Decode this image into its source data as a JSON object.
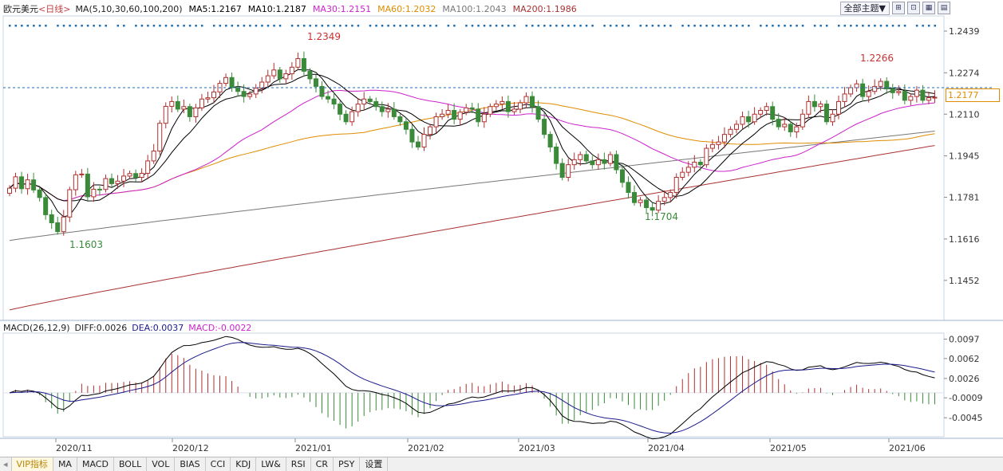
{
  "header": {
    "symbol": "欧元美元",
    "period": "<日线>",
    "ma_label": "MA(5,10,30,60,100,200)",
    "ma5": "MA5:1.2167",
    "ma10": "MA10:1.2187",
    "ma30": "MA30:1.2151",
    "ma60": "MA60:1.2032",
    "ma100": "MA100:1.2043",
    "ma200": "MA200:1.1986"
  },
  "toolbar": {
    "theme": "全部主题▼",
    "icons": [
      "pin-icon",
      "zoom-icon",
      "grid-icon",
      "layout-icon"
    ]
  },
  "price_axis": [
    "1.2439",
    "1.2274",
    "1.2110",
    "1.1945",
    "1.1781",
    "1.1616",
    "1.1452"
  ],
  "current_price": "1.2177",
  "annotations": {
    "high1": "1.2349",
    "high2": "1.2266",
    "low1": "1.1603",
    "low2": "1.1704"
  },
  "macd": {
    "label": "MACD(26,12,9)",
    "diff": "DIFF:0.0026",
    "dea": "DEA:0.0037",
    "macd": "MACD:-0.0022",
    "axis": [
      "0.0097",
      "0.0062",
      "0.0026",
      "-0.0009",
      "-0.0045"
    ]
  },
  "time_axis": [
    "2020/11",
    "2020/12",
    "2021/01",
    "2021/02",
    "2021/03",
    "2021/04",
    "2021/05",
    "2021/06"
  ],
  "tabs": [
    "VIP指标",
    "MA",
    "MACD",
    "BOLL",
    "VOL",
    "BIAS",
    "CCI",
    "KDJ",
    "LW&",
    "RSI",
    "CR",
    "PSY",
    "设置"
  ],
  "colors": {
    "up": "#b03030",
    "down": "#3a8a3a",
    "ma5": "#000000",
    "ma10": "#000000",
    "ma30": "#cc22cc",
    "ma60": "#e08c00",
    "ma100": "#777777",
    "ma200": "#a83232",
    "dea": "#1a1a8c",
    "grid": "#c8d4e4",
    "dashed": "#1e6eb4"
  },
  "chart_data": {
    "type": "candlestick",
    "title": "欧元美元 日线",
    "y_range": [
      1.13,
      1.248
    ],
    "x_range": [
      "2020-10-21",
      "2021-06-09"
    ],
    "closes": [
      1.1817,
      1.1862,
      1.1815,
      1.185,
      1.181,
      1.178,
      1.1712,
      1.168,
      1.1645,
      1.1703,
      1.1811,
      1.187,
      1.1873,
      1.1783,
      1.1813,
      1.1812,
      1.1855,
      1.1835,
      1.1845,
      1.1865,
      1.1875,
      1.186,
      1.1876,
      1.1925,
      1.1964,
      1.2074,
      1.2141,
      1.216,
      1.213,
      1.214,
      1.21,
      1.2135,
      1.217,
      1.2175,
      1.2198,
      1.2232,
      1.2255,
      1.2215,
      1.22,
      1.218,
      1.219,
      1.2213,
      1.2237,
      1.2262,
      1.2285,
      1.225,
      1.227,
      1.2296,
      1.233,
      1.228,
      1.225,
      1.222,
      1.218,
      1.217,
      1.215,
      1.211,
      1.208,
      1.212,
      1.215,
      1.217,
      1.216,
      1.214,
      1.212,
      1.213,
      1.21,
      1.208,
      1.205,
      1.2,
      1.198,
      1.203,
      1.206,
      1.21,
      1.211,
      1.2125,
      1.209,
      1.2118,
      1.2135,
      1.213,
      1.208,
      1.211,
      1.214,
      1.215,
      1.216,
      1.212,
      1.213,
      1.2155,
      1.218,
      1.214,
      1.209,
      1.203,
      1.198,
      1.1915,
      1.186,
      1.191,
      1.193,
      1.195,
      1.1925,
      1.191,
      1.193,
      1.1915,
      1.195,
      1.189,
      1.184,
      1.18,
      1.176,
      1.177,
      1.174,
      1.173,
      1.1765,
      1.178,
      1.18,
      1.186,
      1.188,
      1.19,
      1.192,
      1.191,
      1.1975,
      1.199,
      1.2,
      1.203,
      1.205,
      1.207,
      1.21,
      1.208,
      1.211,
      1.2125,
      1.214,
      1.209,
      1.206,
      1.207,
      1.204,
      1.206,
      1.211,
      1.216,
      1.214,
      1.215,
      1.208,
      1.211,
      1.216,
      1.219,
      1.2215,
      1.223,
      1.218,
      1.22,
      1.222,
      1.224,
      1.221,
      1.2195,
      1.22,
      1.2165,
      1.218,
      1.2205,
      1.2165,
      1.2175,
      1.2177
    ],
    "ma200": [
      1.1335,
      1.1986
    ],
    "ma100": [
      1.161,
      1.2043
    ],
    "macd_range": [
      -0.0075,
      0.0105
    ],
    "macd_axis": [
      0.0097,
      0.0062,
      0.0026,
      -0.0009,
      -0.0045
    ]
  }
}
